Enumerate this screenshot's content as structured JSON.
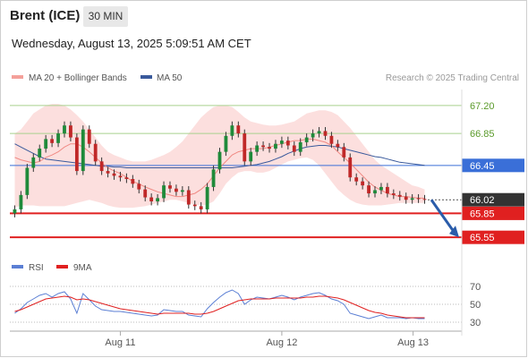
{
  "header": {
    "instrument": "Brent (ICE)",
    "timeframe": "30 MIN",
    "datetime": "Wednesday, August 13, 2025 5:09:51 AM CET"
  },
  "legend": {
    "items": [
      {
        "label": "MA 20 + Bollinger Bands",
        "color": "#f4a09a"
      },
      {
        "label": "MA 50",
        "color": "#3a5a9c"
      }
    ],
    "credit": "Research © 2025 Trading Central"
  },
  "rsi_legend": {
    "items": [
      {
        "label": "RSI",
        "color": "#5b7fd4"
      },
      {
        "label": "9MA",
        "color": "#e02020"
      }
    ]
  },
  "colors": {
    "up": "#1f8a3a",
    "down": "#c02828",
    "bollinger_fill": "#fbd9d8",
    "resistance": "#a8d08d",
    "support": "#e02020",
    "ma50": "#3a5a9c",
    "current_price_badge": "#333333",
    "ma50_badge": "#3a6fd8",
    "forecast_arrow": "#2a5caa"
  },
  "chart_data": [
    {
      "type": "line",
      "title": "Brent (ICE) 30 MIN",
      "x_ticks": [
        "Aug 11",
        "Aug 12",
        "Aug 13"
      ],
      "y_ticks": [
        "67.20",
        "66.85",
        "66.45",
        "66.02",
        "65.85",
        "65.55"
      ],
      "ylim": [
        65.44,
        67.4
      ],
      "grid": false,
      "legend_position": "top",
      "price_levels": [
        {
          "label": "67.20",
          "value": 67.2,
          "kind": "resistance"
        },
        {
          "label": "66.85",
          "value": 66.85,
          "kind": "resistance"
        },
        {
          "label": "66.45",
          "value": 66.45,
          "kind": "ma50"
        },
        {
          "label": "66.02",
          "value": 66.02,
          "kind": "current"
        },
        {
          "label": "65.85",
          "value": 65.85,
          "kind": "support"
        },
        {
          "label": "65.55",
          "value": 65.55,
          "kind": "support"
        }
      ],
      "series": [
        {
          "name": "Price",
          "values": [
            65.9,
            66.08,
            66.42,
            66.55,
            66.66,
            66.78,
            66.73,
            66.85,
            66.95,
            66.8,
            66.38,
            66.9,
            66.72,
            66.5,
            66.38,
            66.35,
            66.32,
            66.3,
            66.28,
            66.22,
            66.15,
            66.05,
            66.0,
            66.04,
            66.2,
            66.16,
            66.12,
            66.14,
            65.96,
            65.94,
            65.9,
            66.18,
            66.4,
            66.62,
            66.82,
            66.95,
            66.85,
            66.5,
            66.62,
            66.7,
            66.68,
            66.66,
            66.72,
            66.76,
            66.7,
            66.62,
            66.74,
            66.8,
            66.85,
            66.88,
            66.82,
            66.72,
            66.68,
            66.55,
            66.3,
            66.25,
            66.2,
            66.1,
            66.14,
            66.18,
            66.1,
            66.08,
            66.06,
            66.02,
            66.04,
            66.03,
            66.02
          ]
        },
        {
          "name": "MA 20",
          "values": [
            66.55,
            66.52,
            66.5,
            66.48,
            66.5,
            66.55,
            66.58,
            66.62,
            66.68,
            66.72,
            66.72,
            66.68,
            66.62,
            66.55,
            66.48,
            66.42,
            66.38,
            66.35,
            66.3,
            66.25,
            66.22,
            66.18,
            66.15,
            66.12,
            66.1,
            66.08,
            66.06,
            66.06,
            66.08,
            66.1,
            66.15,
            66.22,
            66.32,
            66.42,
            66.5,
            66.58,
            66.62,
            66.64,
            66.66,
            66.66,
            66.66,
            66.68,
            66.7,
            66.72,
            66.74,
            66.76,
            66.76,
            66.78,
            66.78,
            66.76,
            66.74,
            66.7,
            66.62,
            66.55,
            66.48,
            66.4,
            66.32,
            66.24,
            66.18,
            66.14,
            66.1,
            66.08,
            66.06,
            66.06,
            66.05,
            66.04,
            66.04
          ]
        },
        {
          "name": "MA 50",
          "values": [
            66.72,
            66.68,
            66.64,
            66.6,
            66.56,
            66.53,
            66.52,
            66.51,
            66.5,
            66.49,
            66.48,
            66.47,
            66.46,
            66.45,
            66.44,
            66.44,
            66.43,
            66.43,
            66.42,
            66.42,
            66.42,
            66.42,
            66.42,
            66.42,
            66.42,
            66.42,
            66.42,
            66.42,
            66.42,
            66.42,
            66.42,
            66.42,
            66.42,
            66.42,
            66.42,
            66.42,
            66.43,
            66.44,
            66.45,
            66.46,
            66.48,
            66.5,
            66.53,
            66.56,
            66.6,
            66.63,
            66.66,
            66.68,
            66.69,
            66.7,
            66.7,
            66.69,
            66.68,
            66.66,
            66.64,
            66.62,
            66.6,
            66.58,
            66.56,
            66.55,
            66.53,
            66.51,
            66.49,
            66.48,
            66.47,
            66.46,
            66.45
          ]
        },
        {
          "name": "Bollinger Upper",
          "values": [
            66.85,
            66.9,
            67.0,
            67.1,
            67.15,
            67.2,
            67.22,
            67.22,
            67.2,
            67.15,
            67.08,
            67.0,
            66.9,
            66.8,
            66.7,
            66.62,
            66.58,
            66.55,
            66.52,
            66.5,
            66.5,
            66.5,
            66.52,
            66.55,
            66.58,
            66.62,
            66.68,
            66.75,
            66.85,
            66.95,
            67.05,
            67.12,
            67.18,
            67.2,
            67.2,
            67.18,
            67.12,
            67.05,
            67.0,
            66.98,
            66.96,
            66.95,
            66.95,
            66.96,
            66.98,
            67.0,
            67.05,
            67.1,
            67.12,
            67.14,
            67.14,
            67.12,
            67.08,
            67.0,
            66.92,
            66.82,
            66.72,
            66.62,
            66.52,
            66.45,
            66.4,
            66.35,
            66.3,
            66.25,
            66.2,
            66.18,
            66.15
          ]
        },
        {
          "name": "Bollinger Lower",
          "values": [
            65.92,
            65.95,
            65.95,
            65.95,
            65.94,
            65.94,
            65.94,
            65.94,
            65.94,
            65.96,
            65.98,
            66.0,
            66.02,
            66.0,
            65.98,
            65.95,
            65.93,
            65.92,
            65.92,
            65.92,
            65.93,
            65.94,
            65.96,
            65.98,
            66.0,
            66.02,
            66.02,
            66.0,
            65.98,
            65.96,
            65.95,
            65.96,
            66.0,
            66.1,
            66.22,
            66.3,
            66.36,
            66.38,
            66.38,
            66.36,
            66.36,
            66.38,
            66.42,
            66.46,
            66.5,
            66.52,
            66.54,
            66.55,
            66.52,
            66.45,
            66.35,
            66.25,
            66.15,
            66.08,
            66.02,
            65.98,
            65.96,
            65.95,
            65.95,
            65.95,
            65.96,
            65.97,
            65.98,
            65.98,
            65.98,
            65.98,
            65.98
          ]
        }
      ],
      "forecast": {
        "from": 66.02,
        "to": 65.55
      }
    },
    {
      "type": "line",
      "title": "RSI",
      "y_ticks": [
        "70",
        "50",
        "30"
      ],
      "ylim": [
        25,
        75
      ],
      "series": [
        {
          "name": "RSI",
          "values": [
            40,
            45,
            52,
            56,
            60,
            62,
            58,
            62,
            64,
            56,
            40,
            62,
            55,
            48,
            44,
            43,
            42,
            42,
            41,
            40,
            39,
            38,
            37,
            38,
            44,
            43,
            42,
            42,
            38,
            37,
            36,
            45,
            52,
            58,
            63,
            66,
            62,
            50,
            55,
            58,
            57,
            56,
            58,
            60,
            58,
            55,
            58,
            60,
            62,
            63,
            60,
            56,
            54,
            50,
            40,
            38,
            36,
            34,
            36,
            38,
            35,
            35,
            35,
            34,
            35,
            34,
            34
          ]
        },
        {
          "name": "9MA",
          "values": [
            42,
            44,
            47,
            50,
            53,
            56,
            57,
            58,
            59,
            58,
            55,
            56,
            55,
            53,
            51,
            49,
            47,
            45,
            44,
            43,
            42,
            41,
            40,
            39,
            40,
            40,
            40,
            40,
            40,
            39,
            39,
            40,
            42,
            45,
            48,
            51,
            54,
            55,
            56,
            56,
            56,
            56,
            57,
            57,
            57,
            57,
            57,
            58,
            58,
            59,
            59,
            58,
            57,
            55,
            52,
            49,
            46,
            43,
            41,
            40,
            38,
            37,
            36,
            35,
            35,
            35,
            35
          ]
        }
      ]
    }
  ]
}
